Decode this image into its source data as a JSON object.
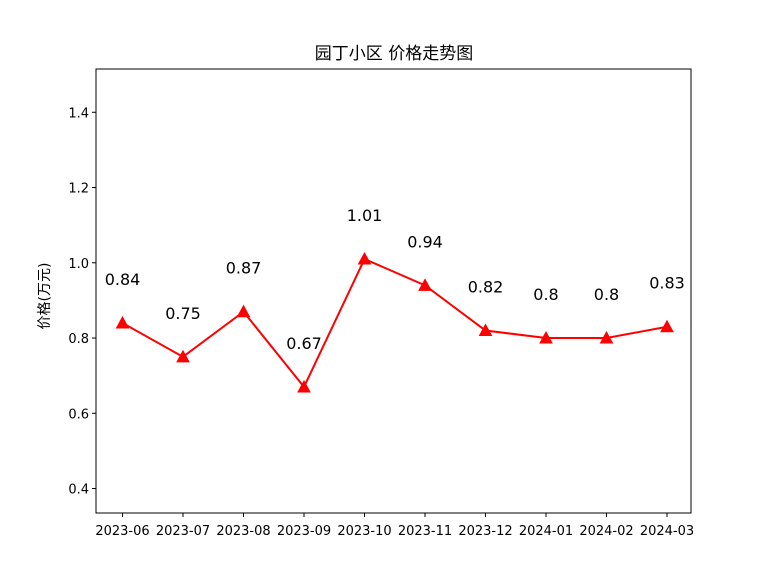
{
  "chart_data": {
    "type": "line",
    "title": "园丁小区 价格走势图",
    "xlabel": "",
    "ylabel": "价格(万元)",
    "categories": [
      "2023-06",
      "2023-07",
      "2023-08",
      "2023-09",
      "2023-10",
      "2023-11",
      "2023-12",
      "2024-01",
      "2024-02",
      "2024-03"
    ],
    "series": [
      {
        "values": [
          0.84,
          0.75,
          0.87,
          0.67,
          1.01,
          0.94,
          0.82,
          0.8,
          0.8,
          0.83
        ],
        "value_labels": [
          "0.84",
          "0.75",
          "0.87",
          "0.67",
          "1.01",
          "0.94",
          "0.82",
          "0.8",
          "0.8",
          "0.83"
        ],
        "color": "#ff0000",
        "marker": "triangle-up"
      }
    ],
    "ylim": [
      0.335,
      1.515
    ],
    "yticks": [
      0.4,
      0.6,
      0.8,
      1.0,
      1.2,
      1.4
    ],
    "ytick_labels": [
      "0.4",
      "0.6",
      "0.8",
      "1.0",
      "1.2",
      "1.4"
    ],
    "grid": false,
    "legend": "none"
  }
}
